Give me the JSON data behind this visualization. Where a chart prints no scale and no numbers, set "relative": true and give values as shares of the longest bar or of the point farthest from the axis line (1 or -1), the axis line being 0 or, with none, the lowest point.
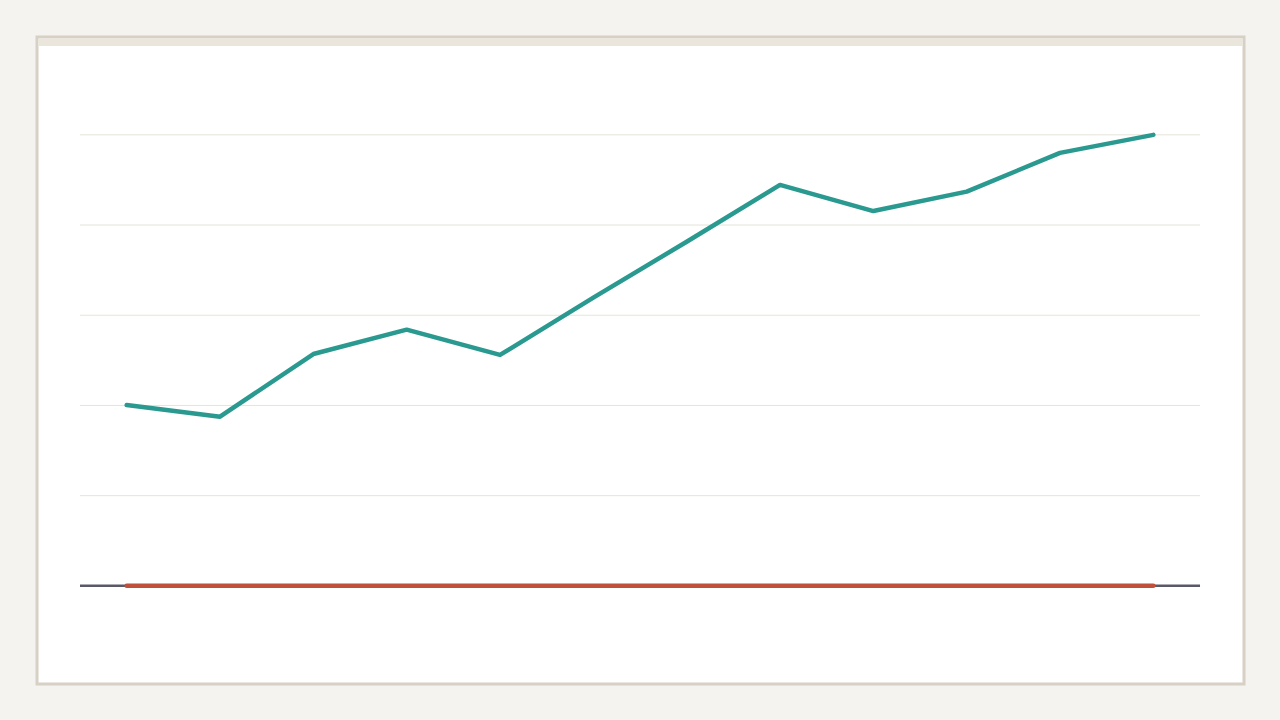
{
  "chart_data": {
    "type": "line",
    "relative": true,
    "grid": "y",
    "categories": [
      null,
      null,
      null,
      null,
      null,
      null,
      null,
      null,
      null,
      null,
      null,
      null
    ],
    "series": [
      {
        "color": "#2a9990",
        "values": [
          0.401,
          0.375,
          0.514,
          0.568,
          0.512,
          0.639,
          0.763,
          0.889,
          0.831,
          0.874,
          0.96,
          1.0
        ]
      },
      {
        "color": "#c0503a",
        "values": [
          0,
          0,
          0,
          0,
          0,
          0,
          0,
          0,
          0,
          0,
          0,
          0
        ]
      }
    ]
  }
}
